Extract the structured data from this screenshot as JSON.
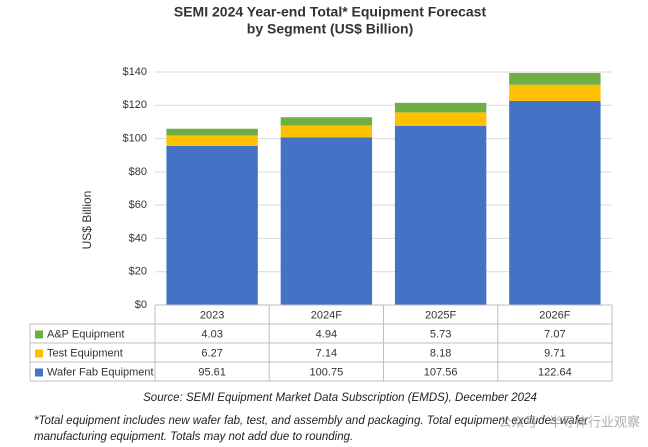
{
  "chart_data": {
    "type": "stacked_bar",
    "title": [
      "SEMI 2024 Year-end Total* Equipment Forecast",
      "by Segment (US$ Billion)"
    ],
    "y_label": "US$ Billion",
    "categories": [
      "2023",
      "2024F",
      "2025F",
      "2026F"
    ],
    "series": [
      {
        "name": "A&P Equipment",
        "color": "#70ad47",
        "values": [
          4.03,
          4.94,
          5.73,
          7.07
        ]
      },
      {
        "name": "Test Equipment",
        "color": "#ffc000",
        "values": [
          6.27,
          7.14,
          8.18,
          9.71
        ]
      },
      {
        "name": "Wafer Fab Equipment",
        "color": "#4472c4",
        "values": [
          95.61,
          100.75,
          107.56,
          122.64
        ]
      }
    ],
    "ylim": [
      0,
      140
    ],
    "yticks": [
      {
        "value": 0,
        "label": "$0"
      },
      {
        "value": 20,
        "label": "$20"
      },
      {
        "value": 40,
        "label": "$40"
      },
      {
        "value": 60,
        "label": "$60"
      },
      {
        "value": 80,
        "label": "$80"
      },
      {
        "value": 100,
        "label": "$100"
      },
      {
        "value": 120,
        "label": "$120"
      },
      {
        "value": 140,
        "label": "$140"
      }
    ],
    "grid": true,
    "source": "Source: SEMI Equipment Market Data Subscription (EMDS), December 2024",
    "footnote": [
      "*Total equipment includes new wafer fab, test, and assembly and packaging. Total equipment excludes wafer",
      "manufacturing equipment. Totals may not add due to rounding."
    ],
    "watermark": "公众号 · 半导体行业观察"
  }
}
